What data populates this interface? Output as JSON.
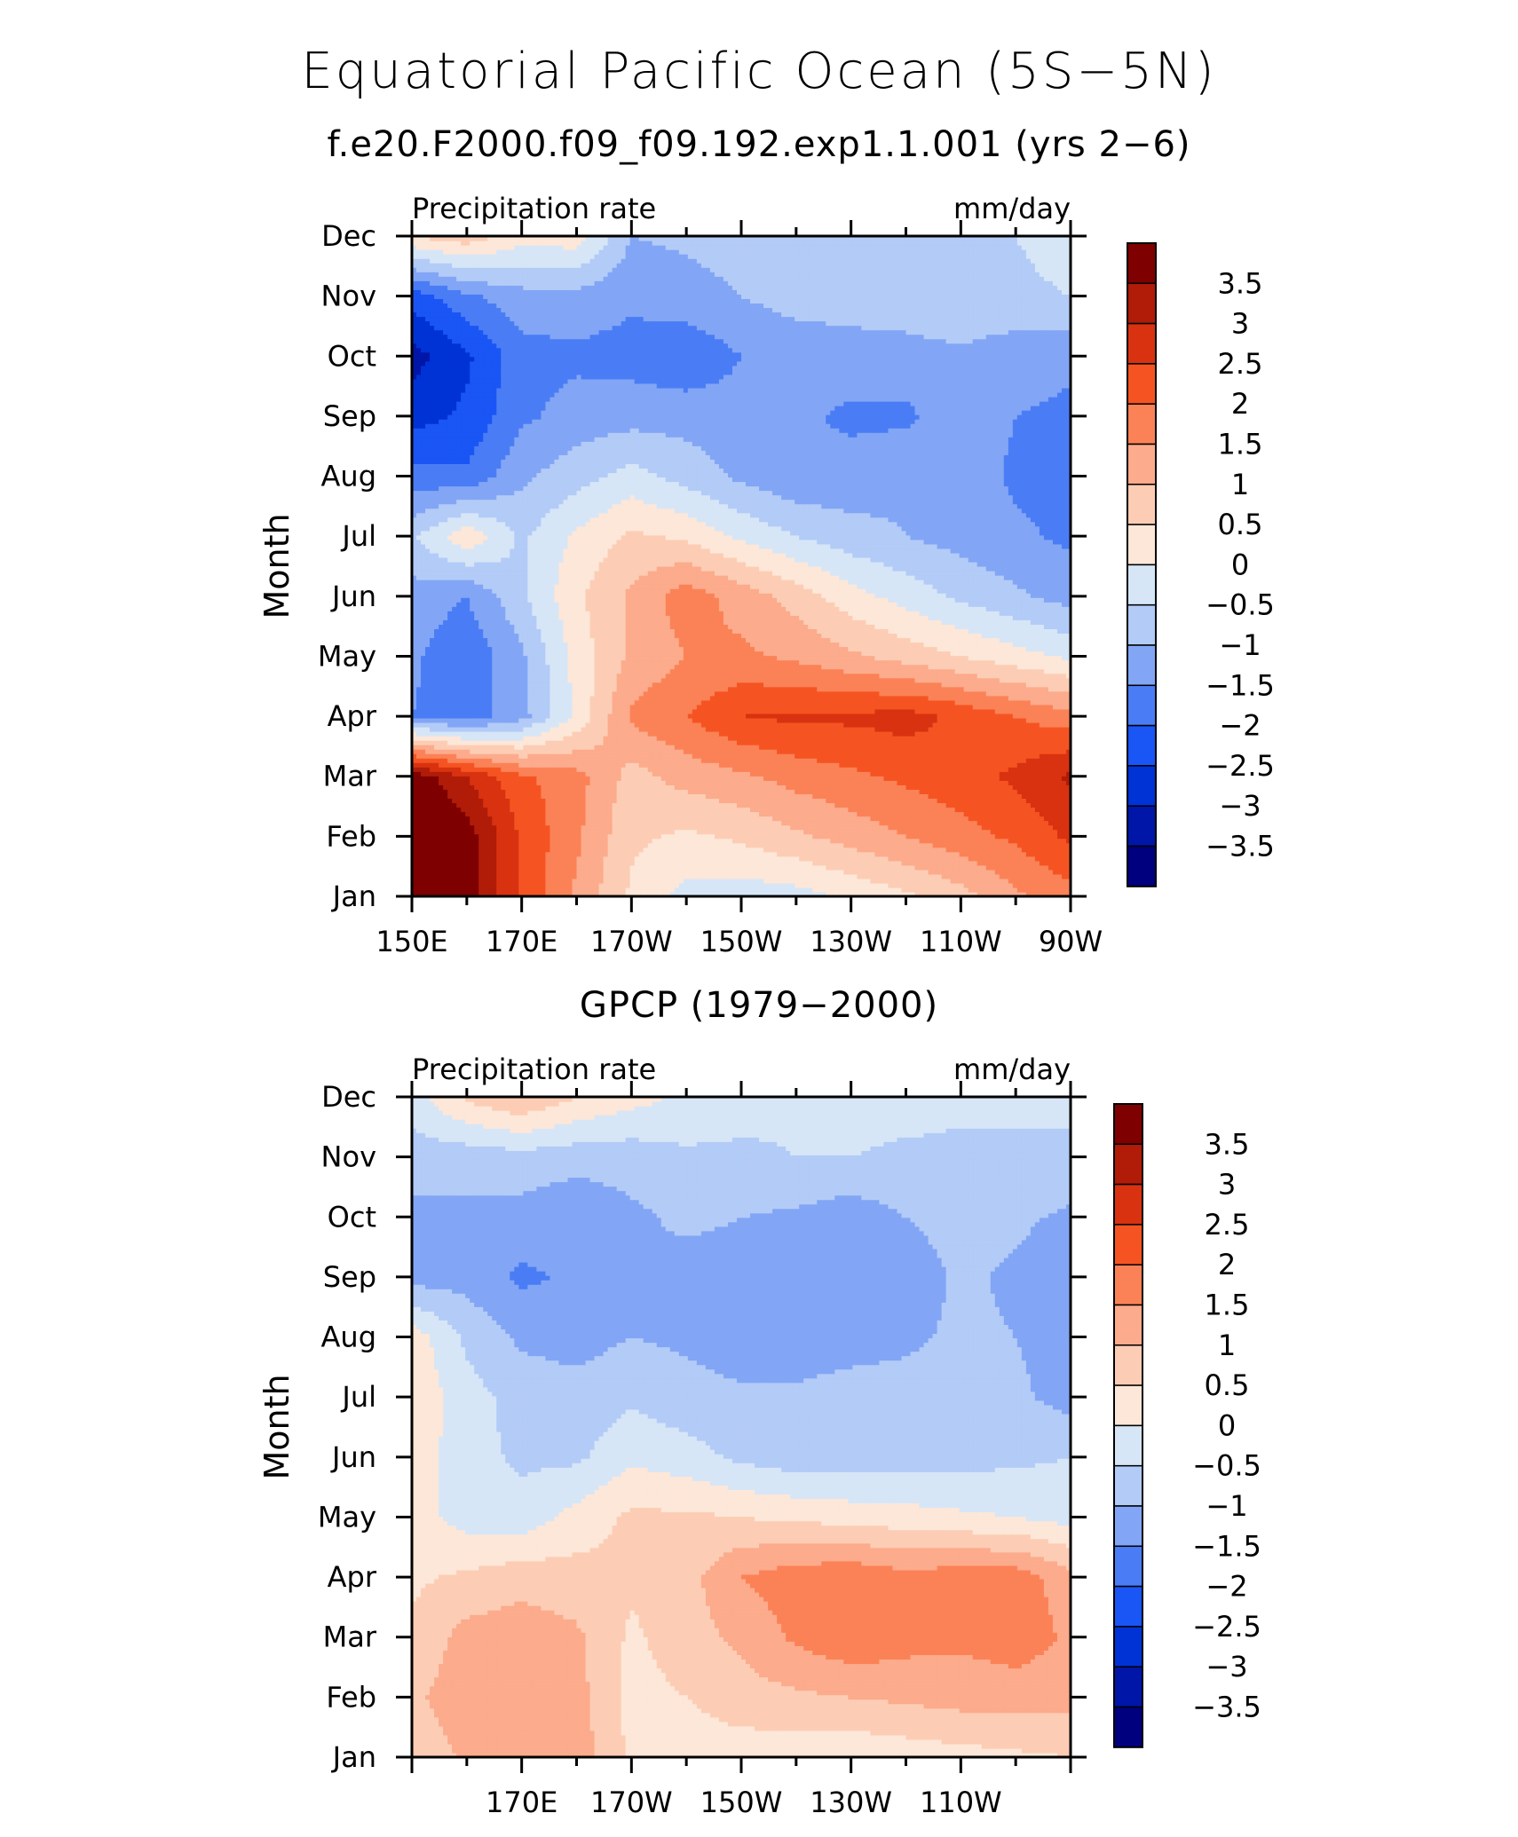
{
  "title": "Equatorial Pacific Ocean (5S−5N)",
  "chart_data": [
    {
      "type": "heatmap",
      "title": "f.e20.F2000.f09_f09.192.exp1.1.001 (yrs 2−6)",
      "left_label": "Precipitation rate",
      "right_label": "mm/day",
      "ylabel": "Month",
      "y_categories": [
        "Jan",
        "Feb",
        "Mar",
        "Apr",
        "May",
        "Jun",
        "Jul",
        "Aug",
        "Sep",
        "Oct",
        "Nov",
        "Dec"
      ],
      "x_tick_labels": [
        "150E",
        "170E",
        "170W",
        "150W",
        "130W",
        "110W",
        "90W"
      ],
      "x_tick_lon": [
        150,
        170,
        190,
        210,
        230,
        250,
        270
      ],
      "colorbar_labels": [
        "3.5",
        "3",
        "2.5",
        "2",
        "1.5",
        "1",
        "0.5",
        "0",
        "−0.5",
        "−1",
        "−1.5",
        "−2",
        "−2.5",
        "−3",
        "−3.5"
      ],
      "levels": [
        -3.5,
        -3,
        -2.5,
        -2,
        -1.5,
        -1,
        -0.5,
        0,
        0.5,
        1,
        1.5,
        2,
        2.5,
        3,
        3.5
      ],
      "colors": [
        "#00007f",
        "#0016a8",
        "#0033d6",
        "#1a55f5",
        "#4a7df5",
        "#82a6f5",
        "#b3cbf7",
        "#d6e6f7",
        "#fde7d8",
        "#fccdb4",
        "#fcab8c",
        "#fb8257",
        "#f55422",
        "#d93210",
        "#b01c08",
        "#7f0000"
      ],
      "grid_lon": [
        150,
        160,
        170,
        180,
        190,
        200,
        210,
        220,
        230,
        240,
        250,
        260,
        270
      ],
      "grid_values": [
        [
          4.2,
          3.8,
          2.4,
          1.4,
          0.4,
          -0.2,
          -0.3,
          -0.2,
          0.1,
          0.4,
          0.8,
          1.4,
          1.8
        ],
        [
          4.2,
          3.8,
          2.4,
          1.6,
          0.6,
          0.4,
          0.6,
          0.9,
          1.2,
          1.5,
          1.8,
          2.1,
          2.6
        ],
        [
          3.9,
          3.0,
          2.1,
          1.7,
          0.8,
          1.2,
          1.4,
          1.7,
          1.9,
          2.1,
          2.3,
          2.6,
          3.1
        ],
        [
          -1.5,
          -1.8,
          -1.2,
          0.1,
          1.6,
          2.0,
          2.5,
          2.6,
          2.6,
          2.7,
          2.4,
          2.0,
          1.7
        ],
        [
          -1.4,
          -1.9,
          -1.1,
          0.2,
          1.1,
          1.5,
          1.6,
          1.4,
          1.1,
          0.8,
          0.5,
          0.2,
          -0.1
        ],
        [
          -1.2,
          -1.5,
          -0.6,
          0.4,
          1.1,
          1.8,
          1.3,
          0.8,
          0.2,
          -0.2,
          -0.6,
          -0.9,
          -1.2
        ],
        [
          -0.6,
          0.4,
          -0.6,
          0.1,
          0.6,
          0.4,
          -0.1,
          -0.5,
          -0.8,
          -1.0,
          -1.2,
          -1.4,
          -1.6
        ],
        [
          -1.8,
          -1.9,
          -1.1,
          -0.7,
          -0.3,
          -0.7,
          -1.1,
          -1.4,
          -1.3,
          -1.1,
          -1.2,
          -1.6,
          -1.7
        ],
        [
          -2.7,
          -2.4,
          -1.6,
          -1.3,
          -1.2,
          -1.2,
          -1.3,
          -1.4,
          -1.6,
          -1.6,
          -1.2,
          -1.5,
          -1.6
        ],
        [
          -3.2,
          -2.6,
          -1.7,
          -1.6,
          -1.7,
          -1.9,
          -1.5,
          -1.3,
          -1.2,
          -1.2,
          -1.1,
          -1.3,
          -1.4
        ],
        [
          -2.3,
          -1.6,
          -1.2,
          -1.2,
          -1.4,
          -1.2,
          -1.0,
          -0.8,
          -0.8,
          -0.7,
          -0.6,
          -0.6,
          -0.5
        ],
        [
          0.5,
          0.8,
          0.2,
          0.3,
          -1.0,
          -0.9,
          -0.8,
          -0.6,
          -0.6,
          -0.6,
          -0.6,
          -0.5,
          -0.3
        ]
      ]
    },
    {
      "type": "heatmap",
      "title": "GPCP (1979−2000)",
      "left_label": "Precipitation rate",
      "right_label": "mm/day",
      "ylabel": "Month",
      "y_categories": [
        "Jan",
        "Feb",
        "Mar",
        "Apr",
        "May",
        "Jun",
        "Jul",
        "Aug",
        "Sep",
        "Oct",
        "Nov",
        "Dec"
      ],
      "x_tick_labels": [
        "170E",
        "170W",
        "150W",
        "130W",
        "110W"
      ],
      "x_tick_lon": [
        170,
        190,
        210,
        230,
        250
      ],
      "colorbar_labels": [
        "3.5",
        "3",
        "2.5",
        "2",
        "1.5",
        "1",
        "0.5",
        "0",
        "−0.5",
        "−1",
        "−1.5",
        "−2",
        "−2.5",
        "−3",
        "−3.5"
      ],
      "levels": [
        -3.5,
        -3,
        -2.5,
        -2,
        -1.5,
        -1,
        -0.5,
        0,
        0.5,
        1,
        1.5,
        2,
        2.5,
        3,
        3.5
      ],
      "colors": [
        "#00007f",
        "#0016a8",
        "#0033d6",
        "#1a55f5",
        "#4a7df5",
        "#82a6f5",
        "#b3cbf7",
        "#d6e6f7",
        "#fde7d8",
        "#fccdb4",
        "#fcab8c",
        "#fb8257",
        "#f55422",
        "#d93210",
        "#b01c08",
        "#7f0000"
      ],
      "grid_lon": [
        150,
        160,
        170,
        180,
        190,
        200,
        210,
        220,
        230,
        240,
        250,
        260,
        270
      ],
      "grid_values": [
        [
          0.6,
          1.1,
          1.2,
          1.3,
          0.4,
          0.2,
          0.2,
          0.2,
          0.1,
          0.2,
          0.3,
          0.4,
          0.5
        ],
        [
          0.9,
          1.3,
          1.4,
          1.2,
          0.3,
          0.5,
          0.8,
          0.9,
          1.0,
          1.1,
          1.2,
          1.2,
          1.2
        ],
        [
          0.6,
          1.2,
          1.3,
          1.1,
          0.4,
          0.8,
          1.1,
          1.6,
          1.9,
          1.7,
          1.6,
          1.8,
          1.4
        ],
        [
          0.4,
          0.6,
          0.8,
          0.7,
          0.6,
          0.8,
          1.5,
          1.8,
          1.9,
          1.7,
          1.8,
          1.8,
          1.2
        ],
        [
          0.2,
          -0.2,
          -0.3,
          0.2,
          0.6,
          0.6,
          0.5,
          0.4,
          0.3,
          0.2,
          0.1,
          0.0,
          -0.2
        ],
        [
          0.3,
          -0.3,
          -0.6,
          -0.6,
          -0.1,
          -0.3,
          -0.6,
          -0.8,
          -0.8,
          -0.7,
          -0.7,
          -0.6,
          -0.5
        ],
        [
          0.4,
          -0.3,
          -0.7,
          -0.8,
          -0.6,
          -0.8,
          -0.9,
          -0.9,
          -0.8,
          -0.8,
          -0.7,
          -0.9,
          -1.2
        ],
        [
          0.3,
          -0.6,
          -1.1,
          -1.2,
          -1.0,
          -1.1,
          -1.3,
          -1.3,
          -1.2,
          -1.1,
          -0.9,
          -1.0,
          -1.2
        ],
        [
          -1.2,
          -1.2,
          -1.6,
          -1.4,
          -1.0,
          -1.2,
          -1.2,
          -1.3,
          -1.4,
          -1.3,
          -0.9,
          -1.1,
          -1.3
        ],
        [
          -1.1,
          -1.1,
          -1.2,
          -1.4,
          -1.1,
          -0.9,
          -1.0,
          -1.1,
          -1.3,
          -1.0,
          -0.8,
          -0.9,
          -1.1
        ],
        [
          -0.8,
          -0.8,
          -0.7,
          -0.8,
          -0.8,
          -0.6,
          -0.6,
          -0.5,
          -0.5,
          -0.6,
          -0.6,
          -0.6,
          -0.6
        ],
        [
          -0.2,
          0.6,
          1.0,
          0.5,
          0.2,
          -0.1,
          -0.3,
          -0.4,
          -0.3,
          -0.3,
          -0.4,
          -0.4,
          -0.4
        ]
      ]
    }
  ]
}
